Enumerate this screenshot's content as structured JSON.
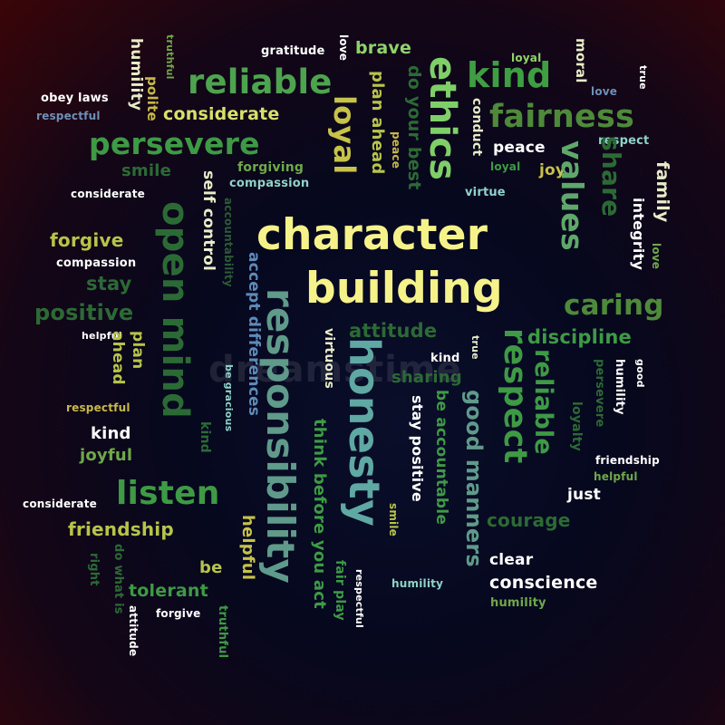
{
  "watermark": "dreamstime",
  "colors": {
    "background_center": "#06081e",
    "background_edge": "#3a0508",
    "pale_yellow": "#f6f28a",
    "white": "#ffffff",
    "light_green": "#8fd36a",
    "green": "#3e9a45",
    "dark_green": "#2c6a35",
    "olive": "#b7c44a",
    "teal": "#5fa8a4",
    "slate_blue": "#6f8fb8"
  },
  "words": [
    {
      "text": "gratitude",
      "color": "#ffffff"
    },
    {
      "text": "brave",
      "color": "#8fd36a"
    },
    {
      "text": "loyal",
      "color": "#8fd36a"
    },
    {
      "text": "humility",
      "color": "#e8ecc8"
    },
    {
      "text": "truthful",
      "color": "#6fa84a"
    },
    {
      "text": "love",
      "color": "#ffffff"
    },
    {
      "text": "moral",
      "color": "#e8ecc8"
    },
    {
      "text": "true",
      "color": "#ffffff"
    },
    {
      "text": "reliable",
      "color": "#4ea34f"
    },
    {
      "text": "kind",
      "color": "#3f9e43"
    },
    {
      "text": "ethics",
      "color": "#7fcf68"
    },
    {
      "text": "polite",
      "color": "#c8b84a"
    },
    {
      "text": "obey laws",
      "color": "#ffffff"
    },
    {
      "text": "respectful",
      "color": "#6f8fb8"
    },
    {
      "text": "considerate",
      "color": "#d8e06a"
    },
    {
      "text": "loyal",
      "color": "#c6c24a"
    },
    {
      "text": "plan ahead",
      "color": "#b7c44a"
    },
    {
      "text": "do your best",
      "color": "#2c6a35"
    },
    {
      "text": "fairness",
      "color": "#4e8a3a"
    },
    {
      "text": "love",
      "color": "#6f8fb8"
    },
    {
      "text": "persevere",
      "color": "#3e9a45"
    },
    {
      "text": "conduct",
      "color": "#e8ecc8"
    },
    {
      "text": "peace",
      "color": "#ffffff"
    },
    {
      "text": "respect",
      "color": "#8fd3c8"
    },
    {
      "text": "peace",
      "color": "#c8b84a"
    },
    {
      "text": "smile",
      "color": "#2c6a35"
    },
    {
      "text": "forgiving",
      "color": "#6fa84a"
    },
    {
      "text": "compassion",
      "color": "#8fd3c8"
    },
    {
      "text": "loyal",
      "color": "#3e9a45"
    },
    {
      "text": "joy",
      "color": "#c6c24a"
    },
    {
      "text": "virtue",
      "color": "#8fd3c8"
    },
    {
      "text": "share",
      "color": "#2c6a35"
    },
    {
      "text": "values",
      "color": "#5fa86a"
    },
    {
      "text": "family",
      "color": "#e8ecc8"
    },
    {
      "text": "integrity",
      "color": "#ffffff"
    },
    {
      "text": "considerate",
      "color": "#ffffff"
    },
    {
      "text": "self control",
      "color": "#e8ecc8"
    },
    {
      "text": "open mind",
      "color": "#2c6a35"
    },
    {
      "text": "accountability",
      "color": "#2c5a35"
    },
    {
      "text": "love",
      "color": "#6fa84a"
    },
    {
      "text": "forgive",
      "color": "#b7c44a"
    },
    {
      "text": "compassion",
      "color": "#ffffff"
    },
    {
      "text": "character",
      "color": "#f6f28a"
    },
    {
      "text": "building",
      "color": "#f6f28a"
    },
    {
      "text": "stay",
      "color": "#2c6a35"
    },
    {
      "text": "positive",
      "color": "#2c6a35"
    },
    {
      "text": "accept differences",
      "color": "#5f8ab8"
    },
    {
      "text": "responsibility",
      "color": "#5f9a8a"
    },
    {
      "text": "caring",
      "color": "#4e8a3a"
    },
    {
      "text": "attitude",
      "color": "#2c6a35"
    },
    {
      "text": "discipline",
      "color": "#3e9a45"
    },
    {
      "text": "virtuous",
      "color": "#e8ecc8"
    },
    {
      "text": "honesty",
      "color": "#5fa8a4"
    },
    {
      "text": "helpful",
      "color": "#ffffff"
    },
    {
      "text": "plan",
      "color": "#b7c44a"
    },
    {
      "text": "ahead",
      "color": "#b7c44a"
    },
    {
      "text": "kind",
      "color": "#ffffff"
    },
    {
      "text": "respect",
      "color": "#3e9a45"
    },
    {
      "text": "true",
      "color": "#e8ecc8"
    },
    {
      "text": "sharing",
      "color": "#2c6a35"
    },
    {
      "text": "good",
      "color": "#ffffff"
    },
    {
      "text": "humility",
      "color": "#ffffff"
    },
    {
      "text": "persevere",
      "color": "#2c6a35"
    },
    {
      "text": "be gracious",
      "color": "#8fd3c8"
    },
    {
      "text": "reliable",
      "color": "#3e9a45"
    },
    {
      "text": "respectful",
      "color": "#c8b84a"
    },
    {
      "text": "stay positive",
      "color": "#ffffff"
    },
    {
      "text": "be accountable",
      "color": "#3e9a45"
    },
    {
      "text": "good manners",
      "color": "#5f9a8a"
    },
    {
      "text": "loyalty",
      "color": "#2c6a35"
    },
    {
      "text": "kind",
      "color": "#ffffff"
    },
    {
      "text": "joyful",
      "color": "#6fa84a"
    },
    {
      "text": "kind",
      "color": "#2c6a35"
    },
    {
      "text": "friendship",
      "color": "#ffffff"
    },
    {
      "text": "helpful",
      "color": "#6fa84a"
    },
    {
      "text": "listen",
      "color": "#3e9a45"
    },
    {
      "text": "think before you act",
      "color": "#3e9a45"
    },
    {
      "text": "considerate",
      "color": "#ffffff"
    },
    {
      "text": "just",
      "color": "#ffffff"
    },
    {
      "text": "friendship",
      "color": "#b7c44a"
    },
    {
      "text": "courage",
      "color": "#2c6a35"
    },
    {
      "text": "helpful",
      "color": "#c6c24a"
    },
    {
      "text": "smile",
      "color": "#b7c44a"
    },
    {
      "text": "do what is",
      "color": "#2c6a35"
    },
    {
      "text": "right",
      "color": "#2c6a35"
    },
    {
      "text": "be",
      "color": "#b7c44a"
    },
    {
      "text": "clear",
      "color": "#ffffff"
    },
    {
      "text": "fair play",
      "color": "#3e9a45"
    },
    {
      "text": "respectful",
      "color": "#ffffff"
    },
    {
      "text": "conscience",
      "color": "#ffffff"
    },
    {
      "text": "tolerant",
      "color": "#3e9a45"
    },
    {
      "text": "humility",
      "color": "#8fd3c8"
    },
    {
      "text": "humility",
      "color": "#6fa84a"
    },
    {
      "text": "forgive",
      "color": "#ffffff"
    },
    {
      "text": "attitude",
      "color": "#ffffff"
    },
    {
      "text": "truthful",
      "color": "#3e9a45"
    }
  ]
}
